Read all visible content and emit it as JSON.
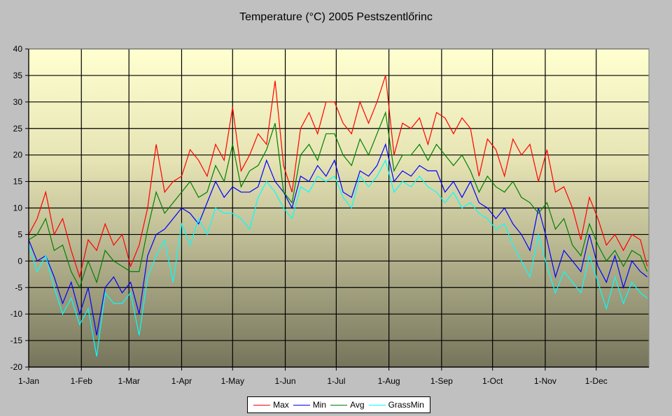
{
  "chart_data": {
    "type": "line",
    "title": "Temperature (°C) 2005 Pestszentlőrinc",
    "xlabel": "",
    "ylabel": "",
    "ylim": [
      -20,
      40
    ],
    "yticks": [
      "40",
      "35",
      "30",
      "25",
      "20",
      "15",
      "10",
      "5",
      "0",
      "-5",
      "-10",
      "-15",
      "-20"
    ],
    "ytick_values": [
      40,
      35,
      30,
      25,
      20,
      15,
      10,
      5,
      0,
      -5,
      -10,
      -15,
      -20
    ],
    "xticks": [
      "1-Jan",
      "1-Feb",
      "1-Mar",
      "1-Apr",
      "1-May",
      "1-Jun",
      "1-Jul",
      "1-Aug",
      "1-Sep",
      "1-Oct",
      "1-Nov",
      "1-Dec"
    ],
    "xtick_days": [
      0,
      31,
      59,
      90,
      120,
      151,
      181,
      212,
      243,
      273,
      304,
      334
    ],
    "xlim_days": [
      0,
      365
    ],
    "grid": true,
    "legend_position": "bottom",
    "x_days": [
      0,
      5,
      10,
      15,
      20,
      25,
      30,
      35,
      40,
      45,
      50,
      55,
      60,
      65,
      70,
      75,
      80,
      85,
      90,
      95,
      100,
      105,
      110,
      115,
      120,
      125,
      130,
      135,
      140,
      145,
      150,
      155,
      160,
      165,
      170,
      175,
      180,
      185,
      190,
      195,
      200,
      205,
      210,
      215,
      220,
      225,
      230,
      235,
      240,
      245,
      250,
      255,
      260,
      265,
      270,
      275,
      280,
      285,
      290,
      295,
      300,
      305,
      310,
      315,
      320,
      325,
      330,
      335,
      340,
      345,
      350,
      355,
      360,
      364
    ],
    "series": [
      {
        "name": "Max",
        "color": "#ff0000",
        "values": [
          5,
          8,
          13,
          5,
          8,
          2,
          -3,
          4,
          2,
          7,
          3,
          5,
          -1,
          3,
          10,
          22,
          13,
          15,
          16,
          21,
          19,
          16,
          22,
          19,
          29,
          17,
          20,
          24,
          22,
          34,
          18,
          13,
          25,
          28,
          24,
          30,
          30,
          26,
          24,
          30,
          26,
          30,
          35,
          20,
          26,
          25,
          27,
          22,
          28,
          27,
          24,
          27,
          25,
          16,
          23,
          21,
          16,
          23,
          20,
          22,
          15,
          21,
          13,
          14,
          10,
          4,
          12,
          8,
          3,
          5,
          2,
          5,
          4,
          -1
        ]
      },
      {
        "name": "Min",
        "color": "#0000ff",
        "values": [
          4,
          0,
          1,
          -3,
          -8,
          -4,
          -10,
          -5,
          -14,
          -5,
          -3,
          -6,
          -4,
          -10,
          1,
          5,
          6,
          8,
          10,
          9,
          7,
          11,
          15,
          12,
          14,
          13,
          13,
          14,
          19,
          15,
          13,
          10,
          16,
          15,
          18,
          16,
          19,
          13,
          12,
          17,
          16,
          18,
          22,
          15,
          17,
          16,
          18,
          17,
          17,
          13,
          15,
          12,
          15,
          11,
          10,
          8,
          10,
          7,
          5,
          2,
          10,
          4,
          -3,
          2,
          0,
          -2,
          5,
          -1,
          -4,
          1,
          -5,
          0,
          -2,
          -3
        ]
      },
      {
        "name": "Avg",
        "color": "#008000",
        "values": [
          4,
          5,
          8,
          2,
          3,
          -2,
          -5,
          0,
          -4,
          2,
          0,
          -1,
          -2,
          -2,
          6,
          13,
          9,
          11,
          13,
          15,
          12,
          13,
          18,
          15,
          22,
          14,
          17,
          18,
          21,
          26,
          13,
          11,
          20,
          22,
          19,
          24,
          24,
          20,
          18,
          23,
          20,
          24,
          28,
          17,
          20,
          20,
          22,
          19,
          22,
          20,
          18,
          20,
          17,
          13,
          16,
          14,
          13,
          15,
          12,
          11,
          9,
          11,
          6,
          8,
          3,
          1,
          7,
          3,
          0,
          2,
          -1,
          2,
          1,
          -2
        ]
      },
      {
        "name": "GrassMin",
        "color": "#00ffff",
        "values": [
          3,
          -2,
          1,
          -5,
          -10,
          -7,
          -12,
          -9,
          -18,
          -6,
          -8,
          -8,
          -6,
          -14,
          -3,
          1,
          4,
          -4,
          7,
          3,
          8,
          5,
          10,
          9,
          9,
          8,
          6,
          12,
          15,
          13,
          10,
          8,
          14,
          13,
          16,
          15,
          16,
          12,
          10,
          16,
          14,
          16,
          19,
          13,
          15,
          14,
          16,
          14,
          13,
          11,
          13,
          10,
          11,
          9,
          8,
          6,
          7,
          3,
          0,
          -3,
          5,
          -1,
          -6,
          -2,
          -4,
          -6,
          1,
          -4,
          -9,
          -3,
          -8,
          -4,
          -6,
          -7
        ]
      }
    ]
  }
}
